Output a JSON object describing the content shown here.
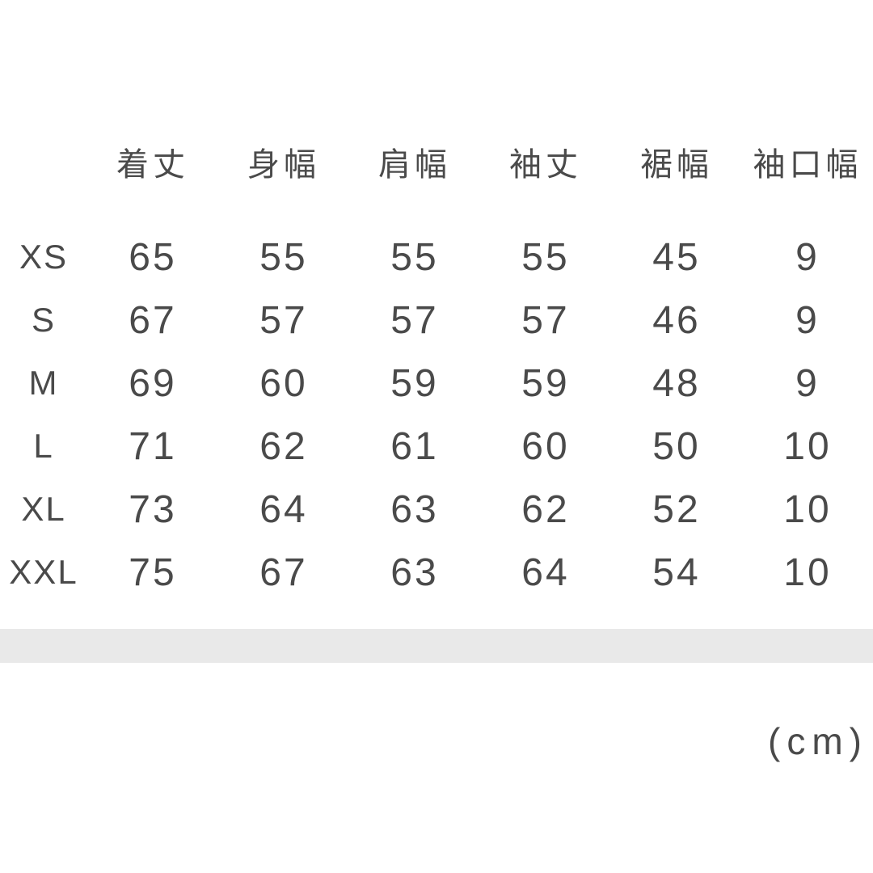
{
  "chart_data": {
    "type": "table",
    "columns": [
      "着丈",
      "身幅",
      "肩幅",
      "袖丈",
      "裾幅",
      "袖口幅"
    ],
    "rows": [
      {
        "size": "XS",
        "values": [
          "65",
          "55",
          "55",
          "55",
          "45",
          "9"
        ]
      },
      {
        "size": "S",
        "values": [
          "67",
          "57",
          "57",
          "57",
          "46",
          "9"
        ]
      },
      {
        "size": "M",
        "values": [
          "69",
          "60",
          "59",
          "59",
          "48",
          "9"
        ]
      },
      {
        "size": "L",
        "values": [
          "71",
          "62",
          "61",
          "60",
          "50",
          "10"
        ]
      },
      {
        "size": "XL",
        "values": [
          "73",
          "64",
          "63",
          "62",
          "52",
          "10"
        ]
      },
      {
        "size": "XXL",
        "values": [
          "75",
          "67",
          "63",
          "64",
          "54",
          "10"
        ]
      }
    ],
    "unit_label": "(cm)",
    "layout": {
      "grid": "off",
      "header_position": "top",
      "row_label_position": "left"
    }
  },
  "colors": {
    "text": "#4a4a4a",
    "background": "#ffffff",
    "divider_bar": "#e9e9e9"
  }
}
